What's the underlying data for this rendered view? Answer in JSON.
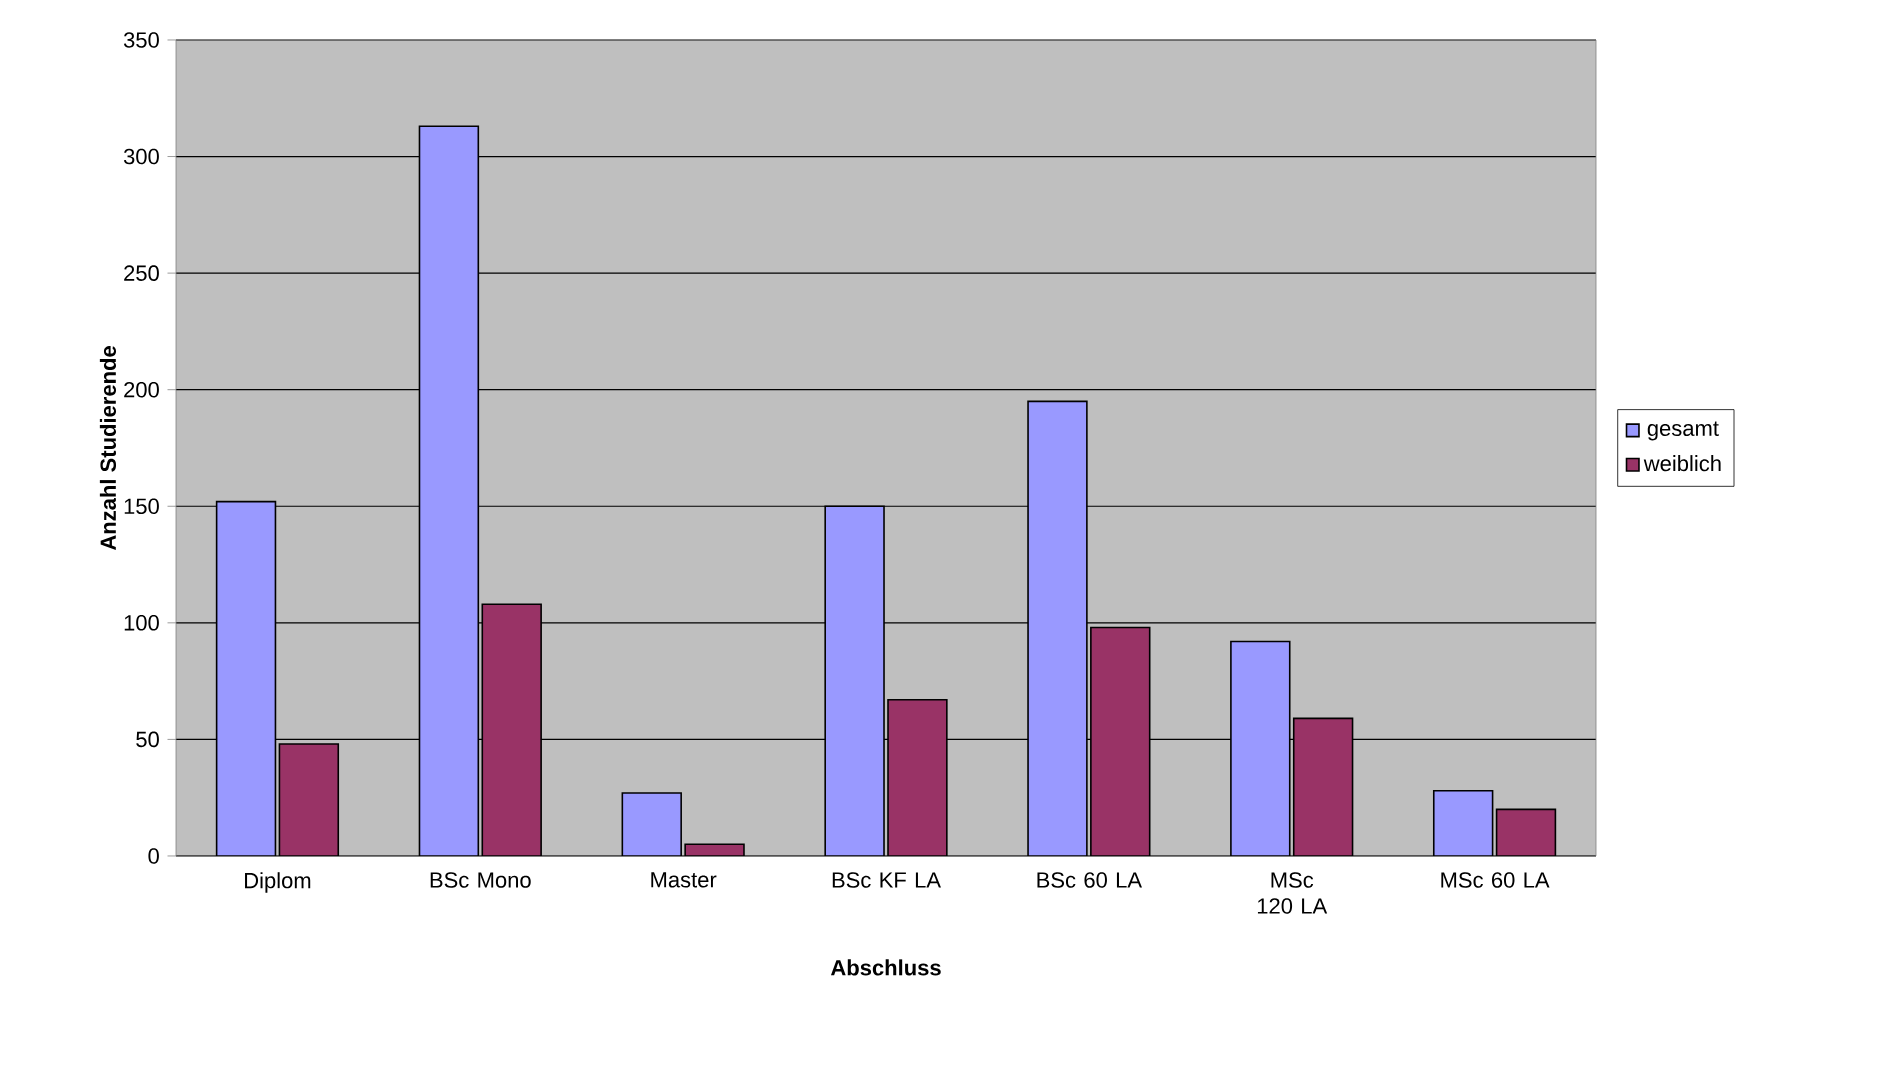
{
  "chart_data": {
    "type": "bar",
    "xlabel": "Abschluss",
    "ylabel": "Anzahl Studierende",
    "categories": [
      "Diplom",
      "BSc Mono",
      "Master",
      "BSc KF LA",
      "BSc 60 LA",
      "MSc 120 LA",
      "MSc 60 LA"
    ],
    "series": [
      {
        "name": "gesamt",
        "color": "#9999ff",
        "values": [
          152,
          313,
          27,
          150,
          195,
          92,
          28
        ]
      },
      {
        "name": "weiblich",
        "color": "#993366",
        "values": [
          48,
          108,
          5,
          67,
          98,
          59,
          20
        ]
      }
    ],
    "ylim": [
      0,
      350
    ],
    "yticks": [
      0,
      50,
      100,
      150,
      200,
      250,
      300,
      350
    ],
    "grid": "y",
    "legend": "right"
  }
}
